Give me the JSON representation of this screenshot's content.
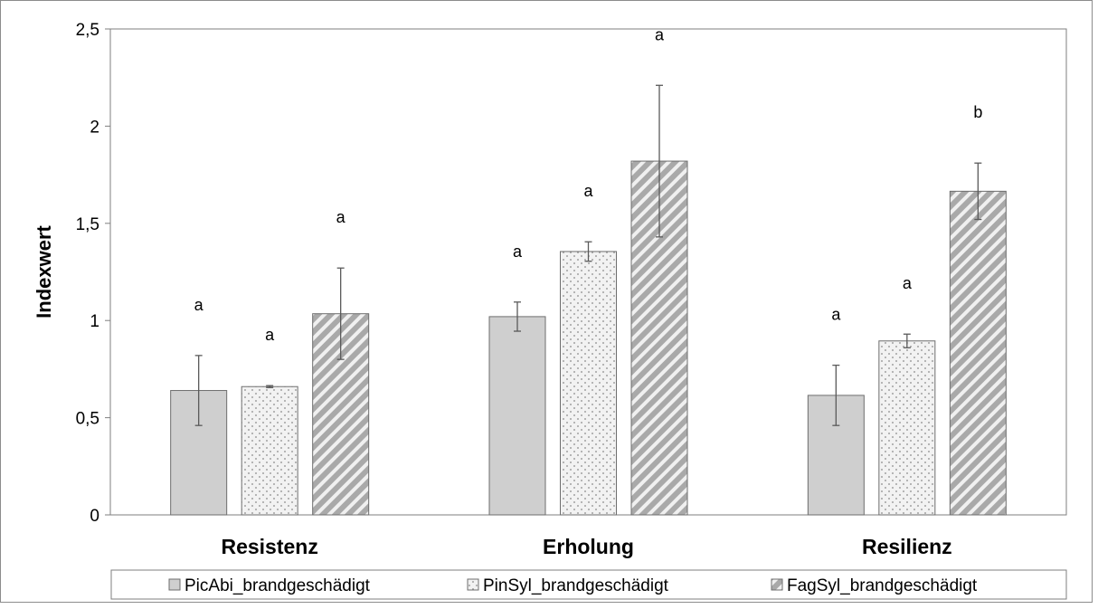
{
  "chart_data": {
    "type": "bar",
    "ylabel": "Indexwert",
    "xlabel": "",
    "ylim": [
      0,
      2.5
    ],
    "yticks": [
      0,
      0.5,
      1,
      1.5,
      2,
      2.5
    ],
    "ytick_labels": [
      "0",
      "0,5",
      "1",
      "1,5",
      "2",
      "2,5"
    ],
    "categories": [
      "Resistenz",
      "Erholung",
      "Resilienz"
    ],
    "series": [
      {
        "name": "PicAbi_brandgeschädigt",
        "fill": "#cfcfcf",
        "pattern": "solid",
        "values": [
          0.64,
          1.02,
          0.615
        ],
        "errors": [
          0.18,
          0.075,
          0.155
        ],
        "significance": [
          "a",
          "a",
          "a"
        ]
      },
      {
        "name": "PinSyl_brandgeschädigt",
        "fill": "#f2f2f2",
        "pattern": "dots",
        "values": [
          0.66,
          1.355,
          0.895
        ],
        "errors": [
          0.005,
          0.05,
          0.035
        ],
        "significance": [
          "a",
          "a",
          "a"
        ]
      },
      {
        "name": "FagSyl_brandgeschädigt",
        "fill": "#b7b7b7",
        "pattern": "diagonal-stripes",
        "values": [
          1.035,
          1.82,
          1.665
        ],
        "errors": [
          0.235,
          0.39,
          0.145
        ],
        "significance": [
          "a",
          "a",
          "b"
        ]
      }
    ],
    "grid": false,
    "legend": "bottom",
    "axis_color": "#7f7f7f",
    "error_bar_color": "#5a5a5a"
  }
}
